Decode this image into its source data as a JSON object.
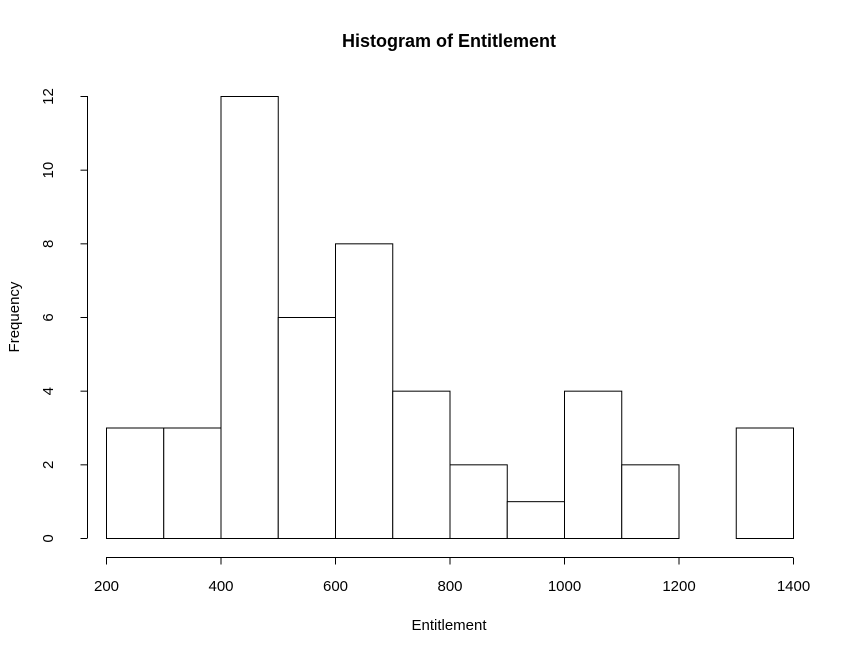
{
  "chart_data": {
    "type": "bar",
    "title": "Histogram of Entitlement",
    "xlabel": "Entitlement",
    "ylabel": "Frequency",
    "bins": [
      [
        200,
        300
      ],
      [
        300,
        400
      ],
      [
        400,
        500
      ],
      [
        500,
        600
      ],
      [
        600,
        700
      ],
      [
        700,
        800
      ],
      [
        800,
        900
      ],
      [
        900,
        1000
      ],
      [
        1000,
        1100
      ],
      [
        1100,
        1200
      ],
      [
        1200,
        1300
      ],
      [
        1300,
        1400
      ]
    ],
    "values": [
      3,
      3,
      12,
      6,
      8,
      4,
      2,
      1,
      4,
      2,
      0,
      3
    ],
    "xlim": [
      200,
      1400
    ],
    "ylim": [
      0,
      12
    ],
    "xticks": [
      200,
      400,
      600,
      800,
      1000,
      1200,
      1400
    ],
    "yticks": [
      0,
      2,
      4,
      6,
      8,
      10,
      12
    ],
    "grid": false,
    "legend": "none"
  }
}
